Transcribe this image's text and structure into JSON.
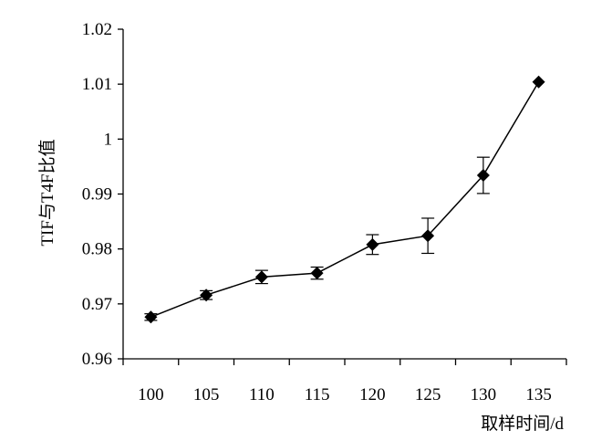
{
  "chart_data": {
    "type": "line",
    "title": "",
    "xlabel": "取样时间/d",
    "ylabel": "TIF与T4F比值",
    "categories": [
      "100",
      "105",
      "110",
      "115",
      "120",
      "125",
      "130",
      "135"
    ],
    "ylim": [
      0.96,
      1.02
    ],
    "yticks": [
      "0.96",
      "0.97",
      "0.98",
      "0.99",
      "1",
      "1.01",
      "1.02"
    ],
    "grid": false,
    "legend": "none",
    "marker": "diamond",
    "colors": {
      "line": "#000000",
      "marker": "#000000"
    },
    "series": [
      {
        "values": [
          0.9676,
          0.9716,
          0.9749,
          0.9756,
          0.9808,
          0.9824,
          0.9934,
          1.0104
        ],
        "errors": [
          0.0006,
          0.0008,
          0.0012,
          0.0011,
          0.0018,
          0.0032,
          0.0033,
          0.0
        ]
      }
    ]
  }
}
